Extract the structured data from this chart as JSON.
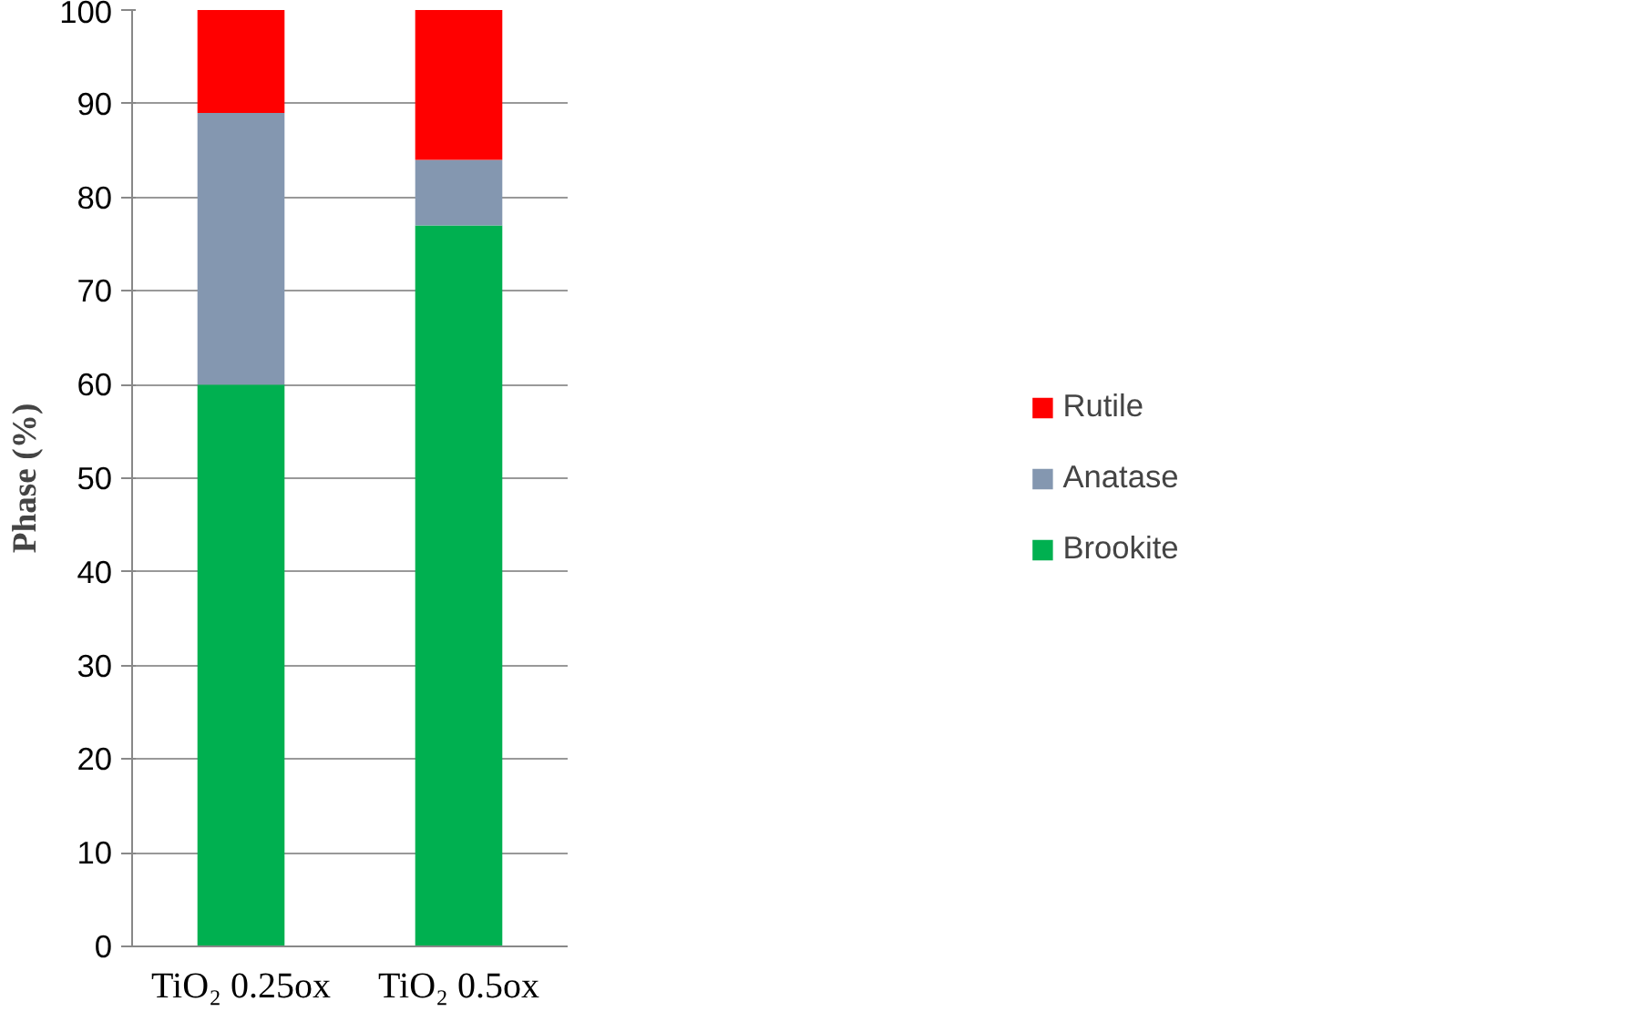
{
  "chart_data": {
    "type": "bar",
    "stacked": true,
    "ylabel": "Phase (%)",
    "categories": [
      "TiO₂ 0.25ox",
      "TiO₂ 0.5ox"
    ],
    "series": [
      {
        "name": "Brookite",
        "color": "#00b050",
        "values": [
          60,
          77
        ]
      },
      {
        "name": "Anatase",
        "color": "#8497b0",
        "values": [
          29,
          7
        ]
      },
      {
        "name": "Rutile",
        "color": "#ff0000",
        "values": [
          11,
          16
        ]
      }
    ],
    "ylim": [
      0,
      100
    ],
    "yticks": [
      0,
      10,
      20,
      30,
      40,
      50,
      60,
      70,
      80,
      90,
      100
    ],
    "grid": "y",
    "legend": "right"
  }
}
